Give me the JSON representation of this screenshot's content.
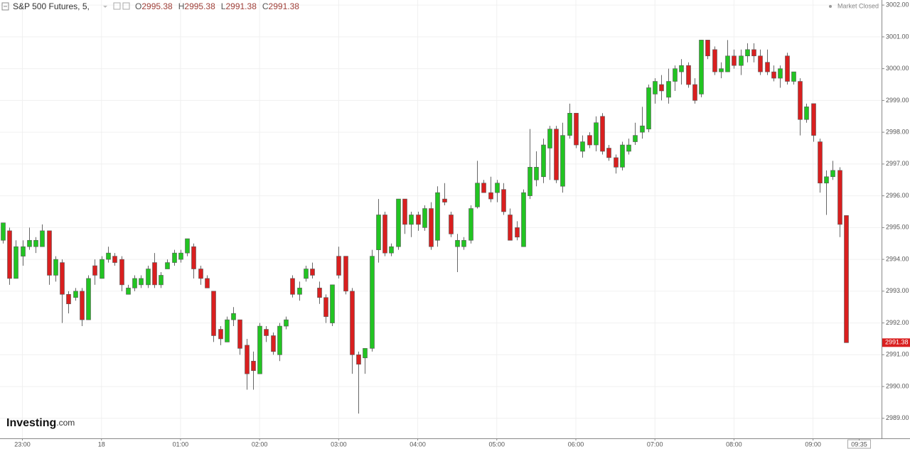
{
  "chart_data": {
    "type": "candlestick",
    "title": "S&P 500 Futures, 5,",
    "ohlc_header": [
      {
        "label": "O",
        "value": 2995.38
      },
      {
        "label": "H",
        "value": 2995.38
      },
      {
        "label": "L",
        "value": 2991.38
      },
      {
        "label": "C",
        "value": 2991.38
      }
    ],
    "status": "Market Closed",
    "brand": {
      "name": "Investing",
      "suffix": ".com"
    },
    "last_price": 2991.38,
    "up_color": "#22c422",
    "down_color": "#d91f1f",
    "grid": true,
    "x": [
      1365,
      1370,
      1375,
      1380,
      1385,
      1390,
      1395,
      1400,
      1405,
      1410,
      1415,
      1420,
      1425,
      1430,
      1435,
      1440,
      1445,
      1450,
      1455,
      1460,
      1465,
      1470,
      1475,
      1480,
      1485,
      1490,
      1495,
      1500,
      1505,
      1510,
      1515,
      1520,
      1525,
      1530,
      1535,
      1540,
      1545,
      1550,
      1555,
      1560,
      1565,
      1570,
      1575,
      1580,
      1585,
      1590,
      1595,
      1600,
      1605,
      1610,
      1615,
      1620,
      1625,
      1630,
      1635,
      1640,
      1645,
      1650,
      1655,
      1660,
      1665,
      1670,
      1675,
      1680,
      1685,
      1690,
      1695,
      1700,
      1705,
      1710,
      1715,
      1720,
      1725,
      1730,
      1735,
      1740,
      1745,
      1750,
      1755,
      1760,
      1765,
      1770,
      1775,
      1780,
      1785,
      1790,
      1795,
      1800,
      1805,
      1810,
      1815,
      1820,
      1825,
      1830,
      1835,
      1840,
      1845,
      1850,
      1855,
      1860,
      1865,
      1870,
      1875,
      1880,
      1885,
      1890,
      1895,
      1900,
      1905,
      1910,
      1915,
      1920,
      1925,
      1930,
      1935,
      1940,
      1945,
      1950,
      1955,
      1960,
      1965,
      1970,
      1975,
      1980,
      1985,
      1990,
      1995,
      2000,
      2005
    ],
    "open": [
      2994.6,
      2994.9,
      2993.4,
      2994.1,
      2994.4,
      2994.4,
      2994.4,
      2994.9,
      2993.5,
      2993.9,
      2992.9,
      2992.8,
      2993.0,
      2992.1,
      2993.8,
      2993.4,
      2994.0,
      2994.1,
      2994.0,
      2992.9,
      2993.1,
      2993.2,
      2993.2,
      2993.9,
      2993.2,
      2993.7,
      2993.9,
      2994.0,
      2994.2,
      2994.4,
      2993.7,
      2993.4,
      2993.0,
      2991.8,
      2991.4,
      2992.1,
      2992.1,
      2991.3,
      2990.8,
      2990.4,
      2991.8,
      2991.6,
      2991.0,
      2991.9,
      2993.4,
      2992.9,
      2993.4,
      2993.7,
      2993.1,
      2992.8,
      2992.0,
      2994.1,
      2994.1,
      2993.0,
      2991.0,
      2990.9,
      2991.2,
      2994.3,
      2995.4,
      2994.2,
      2994.4,
      2995.9,
      2995.1,
      2995.4,
      2995.0,
      2995.6,
      2994.6,
      2995.9,
      2995.4,
      2994.4,
      2994.4,
      2994.6,
      2995.65,
      2996.4,
      2996.1,
      2996.1,
      2996.2,
      2995.4,
      2995.0,
      2994.4,
      2996.0,
      2996.5,
      2996.6,
      2997.5,
      2998.1,
      2996.3,
      2997.9,
      2998.6,
      2997.4,
      2997.9,
      2997.6,
      2998.5,
      2997.5,
      2997.2,
      2996.9,
      2997.4,
      2997.7,
      2998.0,
      2998.1,
      2999.2,
      2999.5,
      2999.1,
      2999.6,
      2999.9,
      3000.1,
      2999.5,
      2999.2,
      3000.9,
      3000.6,
      2999.9,
      2999.9,
      3000.4,
      3000.1,
      3000.4,
      3000.6,
      3000.4,
      3000.2,
      2999.9,
      2999.7,
      3000.4,
      2999.6,
      2999.6,
      2998.4,
      2998.9,
      2997.7,
      2996.4,
      2996.6,
      2996.8,
      2995.38
    ],
    "high": [
      2995.15,
      2995.0,
      2994.6,
      2994.6,
      2995.0,
      2994.7,
      2995.1,
      2994.9,
      2994.1,
      2994.0,
      2993.0,
      2993.1,
      2993.1,
      2993.5,
      2994.0,
      2994.1,
      2994.4,
      2994.2,
      2994.1,
      2993.2,
      2993.5,
      2993.5,
      2993.8,
      2994.2,
      2993.6,
      2994.0,
      2994.3,
      2994.3,
      2994.65,
      2994.5,
      2993.8,
      2993.5,
      2993.0,
      2991.9,
      2992.2,
      2992.5,
      2992.1,
      2991.5,
      2991.1,
      2992.0,
      2991.9,
      2991.7,
      2992.0,
      2992.2,
      2993.5,
      2993.3,
      2993.8,
      2993.9,
      2993.3,
      2992.9,
      2993.2,
      2994.4,
      2994.1,
      2993.1,
      2991.1,
      2991.2,
      2994.3,
      2995.9,
      2995.5,
      2994.5,
      2995.9,
      2995.9,
      2995.5,
      2995.5,
      2995.7,
      2995.8,
      2996.3,
      2996.4,
      2995.5,
      2994.8,
      2994.7,
      2995.7,
      2997.1,
      2996.5,
      2996.6,
      2996.5,
      2996.4,
      2995.6,
      2995.2,
      2996.2,
      2998.1,
      2997.4,
      2997.8,
      2998.2,
      2998.2,
      2998.3,
      2998.9,
      2998.6,
      2997.9,
      2998.0,
      2998.5,
      2998.6,
      2997.6,
      2997.3,
      2997.7,
      2997.8,
      2998.3,
      2998.8,
      2999.5,
      2999.7,
      2999.8,
      3000.0,
      3000.1,
      3000.3,
      3000.2,
      2999.7,
      3000.9,
      3000.9,
      3000.7,
      3000.2,
      3000.9,
      3000.6,
      3000.6,
      3000.8,
      3000.8,
      3000.6,
      3000.6,
      3000.1,
      3000.1,
      3000.5,
      2999.9,
      2999.7,
      2998.9,
      2998.9,
      2997.8,
      2996.8,
      2997.1,
      2996.9,
      2995.38
    ],
    "low": [
      2994.5,
      2993.2,
      2993.4,
      2993.8,
      2994.3,
      2994.2,
      2994.4,
      2993.2,
      2993.3,
      2992.0,
      2992.3,
      2992.7,
      2991.9,
      2992.1,
      2993.2,
      2993.4,
      2993.9,
      2993.8,
      2993.0,
      2992.9,
      2993.0,
      2993.1,
      2993.1,
      2993.1,
      2993.1,
      2993.7,
      2993.8,
      2993.9,
      2994.1,
      2993.4,
      2993.2,
      2993.1,
      2991.4,
      2991.3,
      2991.4,
      2991.9,
      2991.0,
      2989.9,
      2989.9,
      2990.4,
      2991.4,
      2991.0,
      2990.8,
      2991.8,
      2992.8,
      2992.7,
      2993.3,
      2993.4,
      2992.6,
      2992.0,
      2991.9,
      2993.4,
      2992.9,
      2990.4,
      2989.15,
      2990.4,
      2991.1,
      2993.9,
      2994.1,
      2994.1,
      2994.3,
      2994.8,
      2994.7,
      2994.9,
      2994.9,
      2994.3,
      2994.4,
      2995.7,
      2994.7,
      2993.6,
      2994.3,
      2994.5,
      2995.6,
      2996.1,
      2995.8,
      2995.8,
      2995.4,
      2994.6,
      2994.6,
      2994.4,
      2995.9,
      2996.3,
      2996.4,
      2996.5,
      2996.4,
      2996.1,
      2997.8,
      2997.5,
      2997.2,
      2997.5,
      2997.4,
      2997.3,
      2997.1,
      2996.7,
      2996.8,
      2997.3,
      2997.6,
      2997.8,
      2998.0,
      2998.9,
      2999.0,
      2998.9,
      2999.3,
      2999.5,
      2999.4,
      2998.9,
      2999.1,
      3000.3,
      2999.8,
      2999.7,
      2999.9,
      3000.0,
      2999.8,
      3000.2,
      3000.2,
      2999.8,
      2999.8,
      2999.6,
      2999.4,
      2999.5,
      2999.5,
      2997.9,
      2998.3,
      2997.7,
      2996.1,
      2995.4,
      2996.5,
      2994.7,
      2991.38
    ],
    "close": [
      2995.15,
      2993.4,
      2994.4,
      2994.4,
      2994.6,
      2994.6,
      2994.9,
      2993.5,
      2994.0,
      2992.9,
      2992.6,
      2993.0,
      2992.1,
      2993.4,
      2993.5,
      2994.0,
      2994.2,
      2993.9,
      2993.2,
      2993.1,
      2993.4,
      2993.4,
      2993.7,
      2993.2,
      2993.5,
      2993.9,
      2994.2,
      2994.2,
      2994.65,
      2993.7,
      2993.4,
      2993.1,
      2991.6,
      2991.5,
      2992.1,
      2992.3,
      2991.2,
      2990.4,
      2990.5,
      2991.9,
      2991.6,
      2991.1,
      2991.9,
      2992.1,
      2992.9,
      2993.1,
      2993.7,
      2993.5,
      2992.8,
      2992.2,
      2993.2,
      2993.5,
      2993.0,
      2991.0,
      2990.7,
      2991.2,
      2994.1,
      2995.4,
      2994.2,
      2994.4,
      2995.9,
      2995.1,
      2995.4,
      2995.1,
      2995.6,
      2994.4,
      2996.1,
      2995.8,
      2994.8,
      2994.6,
      2994.6,
      2995.6,
      2996.4,
      2996.1,
      2995.9,
      2996.4,
      2995.5,
      2994.6,
      2994.7,
      2996.1,
      2996.9,
      2996.9,
      2997.6,
      2998.1,
      2996.5,
      2997.9,
      2998.6,
      2997.6,
      2997.7,
      2997.6,
      2998.3,
      2997.4,
      2997.2,
      2996.9,
      2997.6,
      2997.6,
      2997.9,
      2998.2,
      2999.4,
      2999.6,
      2999.3,
      2999.6,
      3000.0,
      3000.1,
      2999.5,
      2999.0,
      3000.9,
      3000.4,
      2999.9,
      3000.0,
      3000.4,
      3000.1,
      3000.4,
      3000.6,
      3000.4,
      2999.9,
      2999.9,
      2999.7,
      3000.0,
      2999.6,
      2999.9,
      2998.4,
      2998.8,
      2997.9,
      2996.4,
      2996.6,
      2996.8,
      2995.1,
      2991.38
    ],
    "xlim": [
      1363,
      2032
    ],
    "xticks": [
      {
        "value": 1380,
        "label": "23:00"
      },
      {
        "value": 1440,
        "label": "18"
      },
      {
        "value": 1500,
        "label": "01:00"
      },
      {
        "value": 1560,
        "label": "02:00"
      },
      {
        "value": 1620,
        "label": "03:00"
      },
      {
        "value": 1680,
        "label": "04:00"
      },
      {
        "value": 1740,
        "label": "05:00"
      },
      {
        "value": 1800,
        "label": "06:00"
      },
      {
        "value": 1860,
        "label": "07:00"
      },
      {
        "value": 1920,
        "label": "08:00"
      },
      {
        "value": 1980,
        "label": "09:00"
      },
      {
        "value": 2015,
        "label": "09:35"
      }
    ],
    "ylim": [
      2988.37,
      3002.16
    ],
    "yticks": [
      {
        "value": 2989,
        "label": "2989.00"
      },
      {
        "value": 2990,
        "label": "2990.00"
      },
      {
        "value": 2991,
        "label": "2991.00"
      },
      {
        "value": 2992,
        "label": "2992.00"
      },
      {
        "value": 2993,
        "label": "2993.00"
      },
      {
        "value": 2994,
        "label": "2994.00"
      },
      {
        "value": 2995,
        "label": "2995.00"
      },
      {
        "value": 2996,
        "label": "2996.00"
      },
      {
        "value": 2997,
        "label": "2997.00"
      },
      {
        "value": 2998,
        "label": "2998.00"
      },
      {
        "value": 2999,
        "label": "2999.00"
      },
      {
        "value": 3000,
        "label": "3000.00"
      },
      {
        "value": 3001,
        "label": "3001.00"
      },
      {
        "value": 3002,
        "label": "3002.00"
      }
    ]
  }
}
